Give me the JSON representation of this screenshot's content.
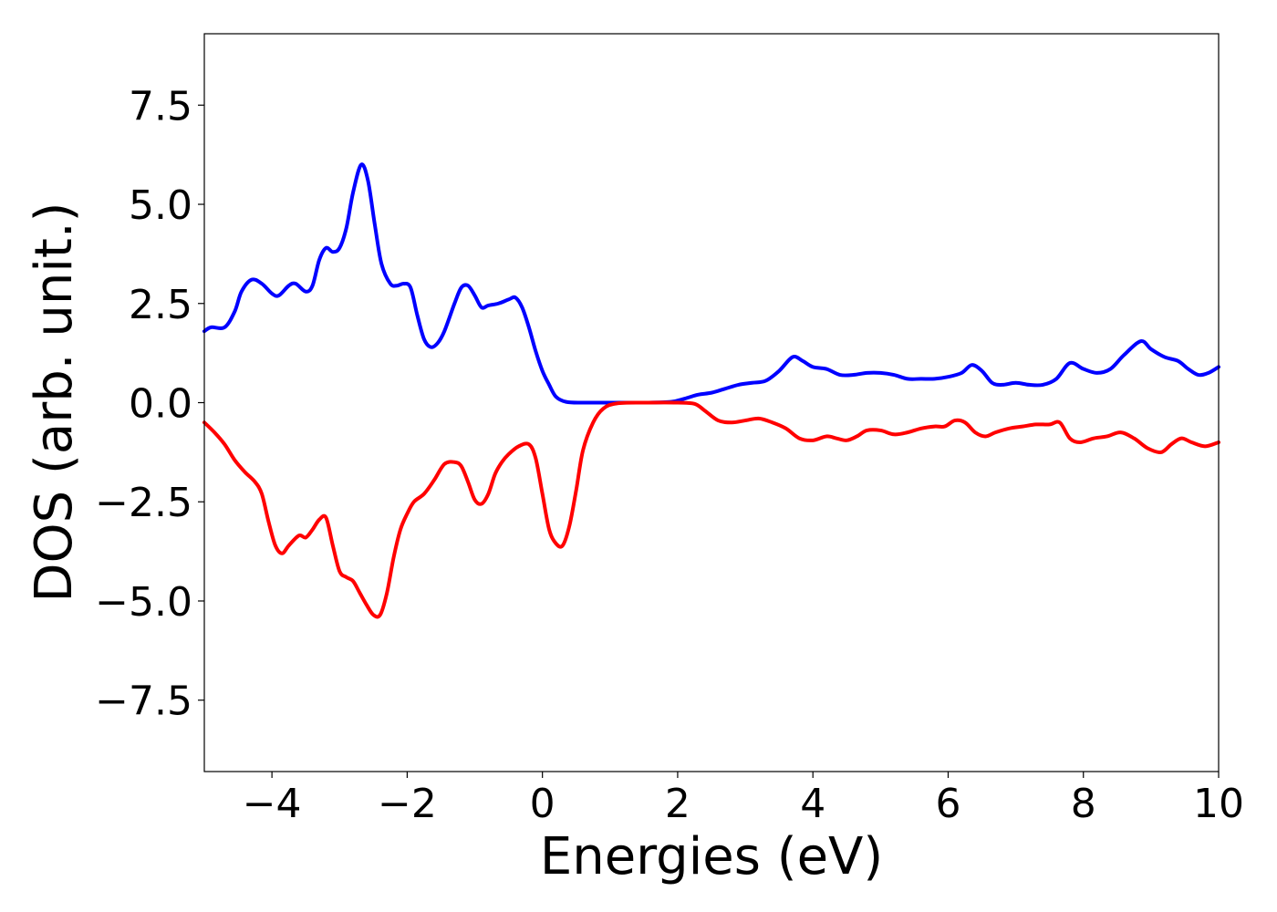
{
  "chart_data": {
    "type": "line",
    "title": "",
    "xlabel": "Energies (eV)",
    "ylabel": "DOS (arb. unit.)",
    "xlim": [
      -5,
      10
    ],
    "ylim": [
      -9.3,
      9.3
    ],
    "x_ticks": [
      -4,
      -2,
      0,
      2,
      4,
      6,
      8,
      10
    ],
    "x_tick_labels": [
      "−4",
      "−2",
      "0",
      "2",
      "4",
      "6",
      "8",
      "10"
    ],
    "y_ticks": [
      7.5,
      5.0,
      2.5,
      0.0,
      -2.5,
      -5.0,
      -7.5
    ],
    "y_tick_labels": [
      "7.5",
      "5.0",
      "2.5",
      "0.0",
      "−2.5",
      "−5.0",
      "−7.5"
    ],
    "grid": false,
    "legend": "none",
    "series": [
      {
        "color": "#0000ff",
        "points": [
          [
            -5.0,
            1.8
          ],
          [
            -4.9,
            1.9
          ],
          [
            -4.7,
            1.9
          ],
          [
            -4.55,
            2.3
          ],
          [
            -4.45,
            2.8
          ],
          [
            -4.3,
            3.1
          ],
          [
            -4.15,
            3.0
          ],
          [
            -4.0,
            2.75
          ],
          [
            -3.9,
            2.7
          ],
          [
            -3.75,
            2.95
          ],
          [
            -3.65,
            3.0
          ],
          [
            -3.5,
            2.8
          ],
          [
            -3.4,
            2.95
          ],
          [
            -3.3,
            3.6
          ],
          [
            -3.2,
            3.9
          ],
          [
            -3.1,
            3.8
          ],
          [
            -3.0,
            3.9
          ],
          [
            -2.9,
            4.4
          ],
          [
            -2.8,
            5.3
          ],
          [
            -2.68,
            6.0
          ],
          [
            -2.58,
            5.6
          ],
          [
            -2.48,
            4.5
          ],
          [
            -2.38,
            3.5
          ],
          [
            -2.25,
            3.0
          ],
          [
            -2.15,
            2.95
          ],
          [
            -2.05,
            3.0
          ],
          [
            -1.95,
            2.9
          ],
          [
            -1.85,
            2.2
          ],
          [
            -1.75,
            1.6
          ],
          [
            -1.65,
            1.4
          ],
          [
            -1.55,
            1.5
          ],
          [
            -1.45,
            1.8
          ],
          [
            -1.3,
            2.5
          ],
          [
            -1.2,
            2.9
          ],
          [
            -1.1,
            2.95
          ],
          [
            -1.0,
            2.7
          ],
          [
            -0.9,
            2.4
          ],
          [
            -0.8,
            2.45
          ],
          [
            -0.65,
            2.5
          ],
          [
            -0.5,
            2.6
          ],
          [
            -0.4,
            2.65
          ],
          [
            -0.3,
            2.4
          ],
          [
            -0.2,
            1.9
          ],
          [
            -0.1,
            1.3
          ],
          [
            0.0,
            0.8
          ],
          [
            0.1,
            0.45
          ],
          [
            0.2,
            0.15
          ],
          [
            0.35,
            0.02
          ],
          [
            0.6,
            0.0
          ],
          [
            1.0,
            0.0
          ],
          [
            1.5,
            0.0
          ],
          [
            1.9,
            0.02
          ],
          [
            2.1,
            0.1
          ],
          [
            2.3,
            0.2
          ],
          [
            2.5,
            0.25
          ],
          [
            2.7,
            0.35
          ],
          [
            2.9,
            0.45
          ],
          [
            3.1,
            0.5
          ],
          [
            3.3,
            0.55
          ],
          [
            3.5,
            0.8
          ],
          [
            3.7,
            1.15
          ],
          [
            3.85,
            1.05
          ],
          [
            4.0,
            0.9
          ],
          [
            4.2,
            0.85
          ],
          [
            4.4,
            0.7
          ],
          [
            4.6,
            0.7
          ],
          [
            4.8,
            0.75
          ],
          [
            5.0,
            0.75
          ],
          [
            5.2,
            0.7
          ],
          [
            5.4,
            0.6
          ],
          [
            5.6,
            0.6
          ],
          [
            5.8,
            0.6
          ],
          [
            6.0,
            0.65
          ],
          [
            6.2,
            0.75
          ],
          [
            6.35,
            0.95
          ],
          [
            6.5,
            0.8
          ],
          [
            6.65,
            0.5
          ],
          [
            6.8,
            0.45
          ],
          [
            7.0,
            0.5
          ],
          [
            7.2,
            0.45
          ],
          [
            7.4,
            0.45
          ],
          [
            7.6,
            0.6
          ],
          [
            7.8,
            1.0
          ],
          [
            8.0,
            0.85
          ],
          [
            8.2,
            0.75
          ],
          [
            8.4,
            0.85
          ],
          [
            8.6,
            1.2
          ],
          [
            8.85,
            1.55
          ],
          [
            9.0,
            1.35
          ],
          [
            9.2,
            1.15
          ],
          [
            9.4,
            1.05
          ],
          [
            9.55,
            0.85
          ],
          [
            9.7,
            0.7
          ],
          [
            9.85,
            0.75
          ],
          [
            10.0,
            0.9
          ]
        ]
      },
      {
        "color": "#ff0000",
        "points": [
          [
            -5.0,
            -0.5
          ],
          [
            -4.85,
            -0.75
          ],
          [
            -4.7,
            -1.05
          ],
          [
            -4.55,
            -1.45
          ],
          [
            -4.4,
            -1.75
          ],
          [
            -4.25,
            -2.0
          ],
          [
            -4.15,
            -2.3
          ],
          [
            -4.05,
            -3.0
          ],
          [
            -3.95,
            -3.6
          ],
          [
            -3.85,
            -3.8
          ],
          [
            -3.75,
            -3.6
          ],
          [
            -3.6,
            -3.35
          ],
          [
            -3.5,
            -3.4
          ],
          [
            -3.4,
            -3.2
          ],
          [
            -3.3,
            -2.95
          ],
          [
            -3.2,
            -2.9
          ],
          [
            -3.1,
            -3.6
          ],
          [
            -3.0,
            -4.25
          ],
          [
            -2.9,
            -4.4
          ],
          [
            -2.8,
            -4.5
          ],
          [
            -2.7,
            -4.8
          ],
          [
            -2.6,
            -5.1
          ],
          [
            -2.5,
            -5.35
          ],
          [
            -2.4,
            -5.35
          ],
          [
            -2.3,
            -4.8
          ],
          [
            -2.2,
            -3.9
          ],
          [
            -2.1,
            -3.2
          ],
          [
            -2.0,
            -2.8
          ],
          [
            -1.9,
            -2.5
          ],
          [
            -1.75,
            -2.3
          ],
          [
            -1.6,
            -1.95
          ],
          [
            -1.45,
            -1.55
          ],
          [
            -1.3,
            -1.5
          ],
          [
            -1.2,
            -1.6
          ],
          [
            -1.1,
            -2.0
          ],
          [
            -1.0,
            -2.45
          ],
          [
            -0.9,
            -2.55
          ],
          [
            -0.8,
            -2.3
          ],
          [
            -0.7,
            -1.8
          ],
          [
            -0.6,
            -1.5
          ],
          [
            -0.5,
            -1.3
          ],
          [
            -0.35,
            -1.1
          ],
          [
            -0.2,
            -1.05
          ],
          [
            -0.1,
            -1.4
          ],
          [
            0.0,
            -2.3
          ],
          [
            0.1,
            -3.2
          ],
          [
            0.2,
            -3.55
          ],
          [
            0.3,
            -3.6
          ],
          [
            0.4,
            -3.1
          ],
          [
            0.5,
            -2.2
          ],
          [
            0.6,
            -1.2
          ],
          [
            0.75,
            -0.5
          ],
          [
            0.9,
            -0.15
          ],
          [
            1.1,
            -0.02
          ],
          [
            1.5,
            0.0
          ],
          [
            2.0,
            0.0
          ],
          [
            2.25,
            -0.03
          ],
          [
            2.4,
            -0.2
          ],
          [
            2.6,
            -0.45
          ],
          [
            2.8,
            -0.5
          ],
          [
            3.0,
            -0.45
          ],
          [
            3.2,
            -0.4
          ],
          [
            3.4,
            -0.5
          ],
          [
            3.6,
            -0.65
          ],
          [
            3.8,
            -0.9
          ],
          [
            4.0,
            -0.95
          ],
          [
            4.2,
            -0.85
          ],
          [
            4.35,
            -0.9
          ],
          [
            4.5,
            -0.95
          ],
          [
            4.65,
            -0.85
          ],
          [
            4.8,
            -0.7
          ],
          [
            5.0,
            -0.7
          ],
          [
            5.2,
            -0.8
          ],
          [
            5.4,
            -0.75
          ],
          [
            5.6,
            -0.65
          ],
          [
            5.8,
            -0.6
          ],
          [
            5.95,
            -0.6
          ],
          [
            6.1,
            -0.45
          ],
          [
            6.25,
            -0.5
          ],
          [
            6.4,
            -0.75
          ],
          [
            6.55,
            -0.85
          ],
          [
            6.7,
            -0.75
          ],
          [
            6.9,
            -0.65
          ],
          [
            7.1,
            -0.6
          ],
          [
            7.3,
            -0.55
          ],
          [
            7.5,
            -0.55
          ],
          [
            7.65,
            -0.5
          ],
          [
            7.8,
            -0.9
          ],
          [
            7.95,
            -1.0
          ],
          [
            8.15,
            -0.9
          ],
          [
            8.35,
            -0.85
          ],
          [
            8.55,
            -0.75
          ],
          [
            8.75,
            -0.9
          ],
          [
            8.95,
            -1.15
          ],
          [
            9.15,
            -1.25
          ],
          [
            9.3,
            -1.05
          ],
          [
            9.45,
            -0.9
          ],
          [
            9.6,
            -1.0
          ],
          [
            9.8,
            -1.1
          ],
          [
            10.0,
            -1.0
          ]
        ]
      }
    ]
  }
}
